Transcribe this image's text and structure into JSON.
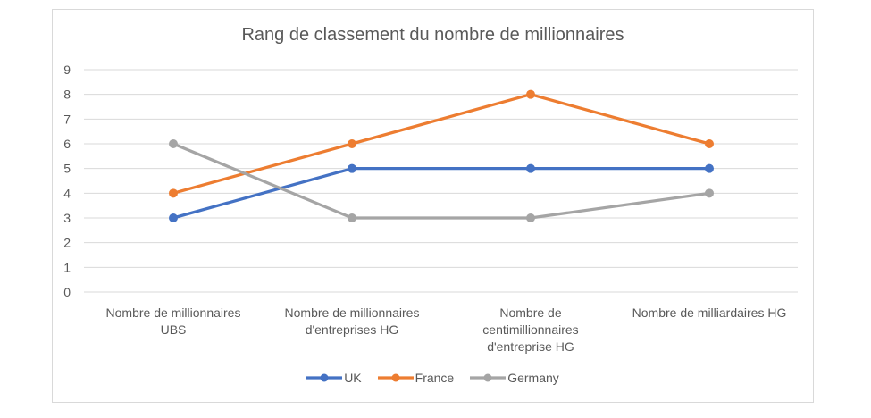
{
  "chart_data": {
    "type": "line",
    "title": "Rang de classement du nombre de millionnaires",
    "categories": [
      "Nombre de millionnaires\nUBS",
      "Nombre de millionnaires\nd'entreprises HG",
      "Nombre de\ncentimillionnaires\nd'entreprise HG",
      "Nombre de milliardaires HG"
    ],
    "series": [
      {
        "name": "UK",
        "values": [
          3,
          5,
          5,
          5
        ],
        "color": "#4472C4"
      },
      {
        "name": "France",
        "values": [
          4,
          6,
          8,
          6
        ],
        "color": "#ED7D31"
      },
      {
        "name": "Germany",
        "values": [
          6,
          3,
          3,
          4
        ],
        "color": "#A5A5A5"
      }
    ],
    "xlabel": "",
    "ylabel": "",
    "ylim": [
      0,
      9
    ],
    "ytick_step": 1,
    "grid": true,
    "legend_position": "bottom"
  },
  "colors": {
    "grid": "#D9D9D9",
    "border": "#D9D9D9",
    "text": "#595959",
    "background": "#FFFFFF"
  }
}
